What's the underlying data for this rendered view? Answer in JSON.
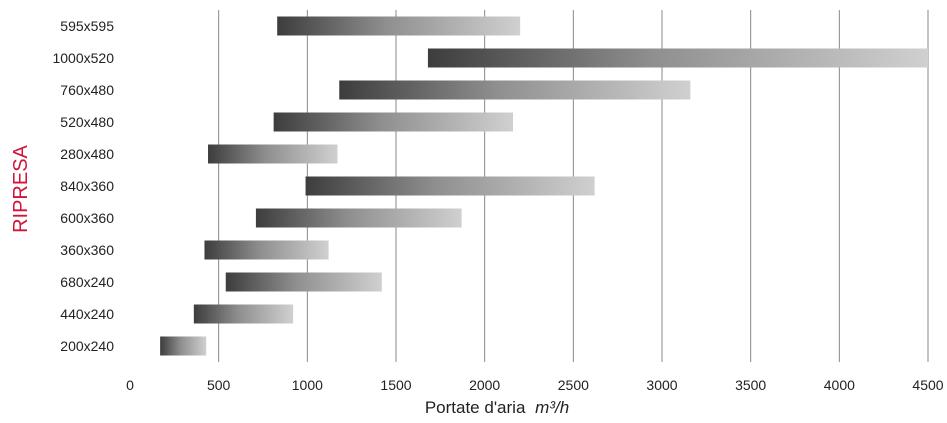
{
  "chart_data": {
    "type": "bar",
    "orientation": "horizontal-range",
    "ylabel": "RIPRESA",
    "xlabel": "Portate d'aria",
    "xlabel_unit": "m³/h",
    "xlim": [
      0,
      4500
    ],
    "xticks": [
      0,
      500,
      1000,
      1500,
      2000,
      2500,
      3000,
      3500,
      4000,
      4500
    ],
    "grid": "vertical",
    "categories": [
      "595x595",
      "1000x520",
      "760x480",
      "520x480",
      "280x480",
      "840x360",
      "600x360",
      "360x360",
      "680x240",
      "440x240",
      "200x240"
    ],
    "series": [
      {
        "ranges": [
          [
            830,
            2200
          ],
          [
            1680,
            4500
          ],
          [
            1180,
            3160
          ],
          [
            810,
            2160
          ],
          [
            440,
            1170
          ],
          [
            990,
            2620
          ],
          [
            710,
            1870
          ],
          [
            420,
            1120
          ],
          [
            540,
            1420
          ],
          [
            360,
            920
          ],
          [
            170,
            430
          ]
        ]
      }
    ],
    "colors": {
      "bar_start": "#3d3d3d",
      "bar_mid": "#9a9a9a",
      "bar_end": "#cfcfcf",
      "ytitle": "#d2143c",
      "grid": "#888888"
    }
  }
}
